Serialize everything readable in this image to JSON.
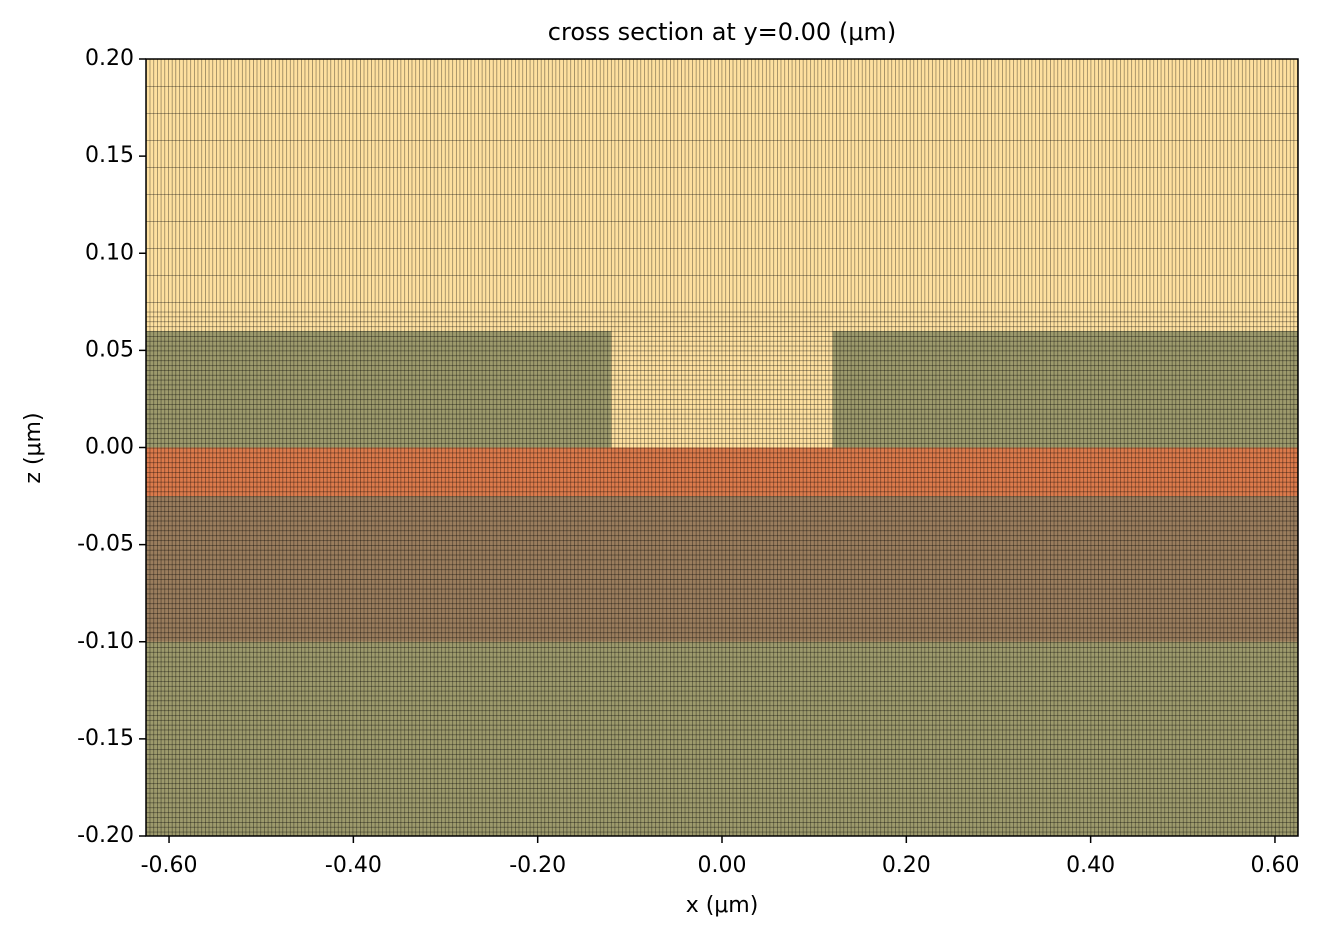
{
  "chart_data": {
    "type": "cross_section",
    "title": "cross section at y=0.00 (μm)",
    "xlabel": "x (μm)",
    "ylabel": "z (μm)",
    "xlim": [
      -0.625,
      0.625
    ],
    "ylim": [
      -0.2,
      0.2
    ],
    "xticks": [
      {
        "value": -0.6,
        "label": "-0.60"
      },
      {
        "value": -0.4,
        "label": "-0.40"
      },
      {
        "value": -0.2,
        "label": "-0.20"
      },
      {
        "value": 0,
        "label": "0.00"
      },
      {
        "value": 0.2,
        "label": "0.20"
      },
      {
        "value": 0.4,
        "label": "0.40"
      },
      {
        "value": 0.6,
        "label": "0.60"
      }
    ],
    "yticks": [
      {
        "value": -0.2,
        "label": "-0.20"
      },
      {
        "value": -0.15,
        "label": "-0.15"
      },
      {
        "value": -0.1,
        "label": "-0.10"
      },
      {
        "value": -0.05,
        "label": "-0.05"
      },
      {
        "value": 0,
        "label": "0.00"
      },
      {
        "value": 0.05,
        "label": "0.05"
      },
      {
        "value": 0.1,
        "label": "0.10"
      },
      {
        "value": 0.15,
        "label": "0.15"
      },
      {
        "value": 0.2,
        "label": "0.20"
      }
    ],
    "structures": [
      {
        "x": [
          -0.625,
          0.625
        ],
        "z": [
          -0.2,
          0.2
        ],
        "color": "#fee09f"
      },
      {
        "x": [
          -0.625,
          0.625
        ],
        "z": [
          -0.2,
          -0.1
        ],
        "color": "#9d9a6c"
      },
      {
        "x": [
          -0.625,
          0.625
        ],
        "z": [
          -0.1,
          -0.025
        ],
        "color": "#9a7d5d"
      },
      {
        "x": [
          -0.625,
          0.625
        ],
        "z": [
          -0.025,
          0
        ],
        "color": "#dc7a4b"
      },
      {
        "x": [
          -0.625,
          -0.12
        ],
        "z": [
          0,
          0.06
        ],
        "color": "#9d9a6c"
      },
      {
        "x": [
          0.12,
          0.625
        ],
        "z": [
          0,
          0.06
        ],
        "color": "#9d9a6c"
      }
    ]
  }
}
